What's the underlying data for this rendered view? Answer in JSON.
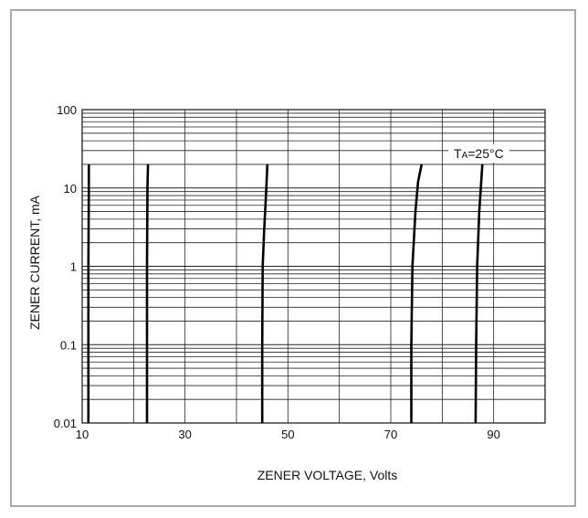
{
  "chart_data": {
    "type": "line",
    "title": "",
    "xlabel": "ZENER VOLTAGE, Volts",
    "ylabel": "ZENER CURRENT, mA",
    "x_scale": "linear",
    "y_scale": "log",
    "xlim": [
      10,
      100
    ],
    "ylim": [
      0.01,
      100
    ],
    "x_ticks": [
      10,
      30,
      50,
      70,
      90
    ],
    "y_ticks": [
      0.01,
      0.1,
      1,
      10,
      100
    ],
    "x_tick_labels": [
      "10",
      "30",
      "50",
      "70",
      "90"
    ],
    "y_tick_labels": [
      "0.01",
      "0.1",
      "1",
      "10",
      "100"
    ],
    "grid": true,
    "annotation": {
      "prefix": "T",
      "subscript": "A",
      "suffix": "=25°C"
    },
    "series": [
      {
        "points": [
          [
            11.2,
            0.01
          ],
          [
            11.2,
            0.1
          ],
          [
            11.2,
            1
          ],
          [
            11.3,
            10
          ],
          [
            11.3,
            20
          ]
        ]
      },
      {
        "points": [
          [
            22.6,
            0.01
          ],
          [
            22.6,
            0.1
          ],
          [
            22.6,
            1
          ],
          [
            22.7,
            10
          ],
          [
            22.8,
            20
          ]
        ]
      },
      {
        "points": [
          [
            45.0,
            0.01
          ],
          [
            45.0,
            0.1
          ],
          [
            45.1,
            1
          ],
          [
            45.4,
            3
          ],
          [
            45.8,
            10
          ],
          [
            46.0,
            20
          ]
        ]
      },
      {
        "points": [
          [
            74.0,
            0.01
          ],
          [
            74.0,
            0.1
          ],
          [
            74.2,
            1
          ],
          [
            74.8,
            5
          ],
          [
            75.3,
            12
          ],
          [
            76.0,
            20
          ]
        ]
      },
      {
        "points": [
          [
            86.5,
            0.01
          ],
          [
            86.6,
            0.1
          ],
          [
            86.8,
            1
          ],
          [
            87.2,
            5
          ],
          [
            87.5,
            10
          ],
          [
            87.8,
            20
          ]
        ]
      }
    ]
  },
  "colors": {
    "grid": "#222222",
    "curve": "#000000",
    "frame_border": "#a8a8a8"
  }
}
